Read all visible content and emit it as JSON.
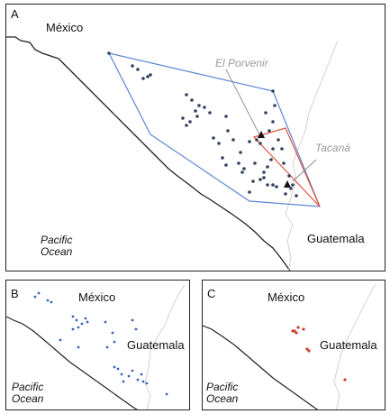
{
  "panel_a": {
    "letter": "A",
    "country_north": "México",
    "country_south": "Guatemala",
    "ocean_line1": "Pacific",
    "ocean_line2": "Ocean",
    "site_1": "El Porvenir",
    "site_2": "Tacaná"
  },
  "panel_b": {
    "letter": "B",
    "country_north": "México",
    "country_south": "Guatemala",
    "ocean_line1": "Pacific",
    "ocean_line2": "Ocean"
  },
  "panel_c": {
    "letter": "C",
    "country_north": "México",
    "country_south": "Guatemala",
    "ocean_line1": "Pacific",
    "ocean_line2": "Ocean"
  },
  "colors": {
    "convex_hull": "#5b84d6",
    "inner_polygon": "#e2553a",
    "points": "#33415e",
    "red_points": "#c8402a",
    "coastline": "#222222",
    "border": "#c8c8c8",
    "site_label": "#9a9a9a"
  }
}
